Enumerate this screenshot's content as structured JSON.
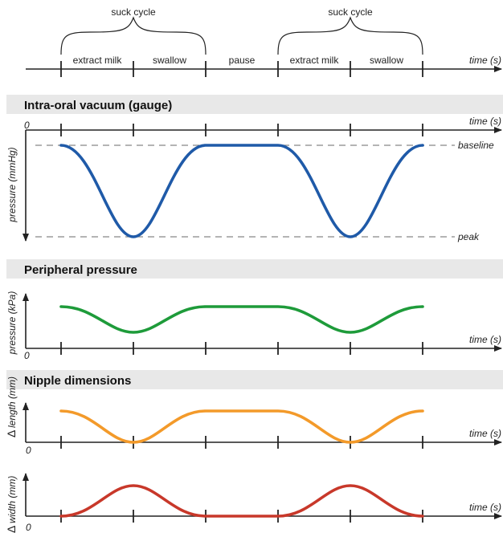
{
  "timeline": {
    "phases": [
      "extract milk",
      "swallow",
      "pause",
      "extract milk",
      "swallow"
    ],
    "cycle_labels": [
      "suck cycle",
      "suck cycle"
    ],
    "time_label": "time (s)"
  },
  "panels": {
    "vacuum": {
      "title": "Intra-oral vacuum (gauge)",
      "origin": "0",
      "time_label": "time (s)",
      "y_label": "pressure (mmHg)",
      "baseline_label": "baseline",
      "peak_label": "peak",
      "color": "#1f5aa8"
    },
    "peripheral": {
      "title": "Peripheral pressure",
      "origin": "0",
      "time_label": "time (s)",
      "y_label": "pressure (kPa)",
      "color": "#1e9b3a"
    },
    "nipple": {
      "title": "Nipple dimensions",
      "length": {
        "origin": "0",
        "time_label": "time (s)",
        "y_prefix": "Δ",
        "y_label": "length (mm)",
        "color": "#f39a2a"
      },
      "width": {
        "origin": "0",
        "time_label": "time (s)",
        "y_prefix": "Δ",
        "y_label": "width (mm)",
        "color": "#c8382a"
      }
    }
  }
}
